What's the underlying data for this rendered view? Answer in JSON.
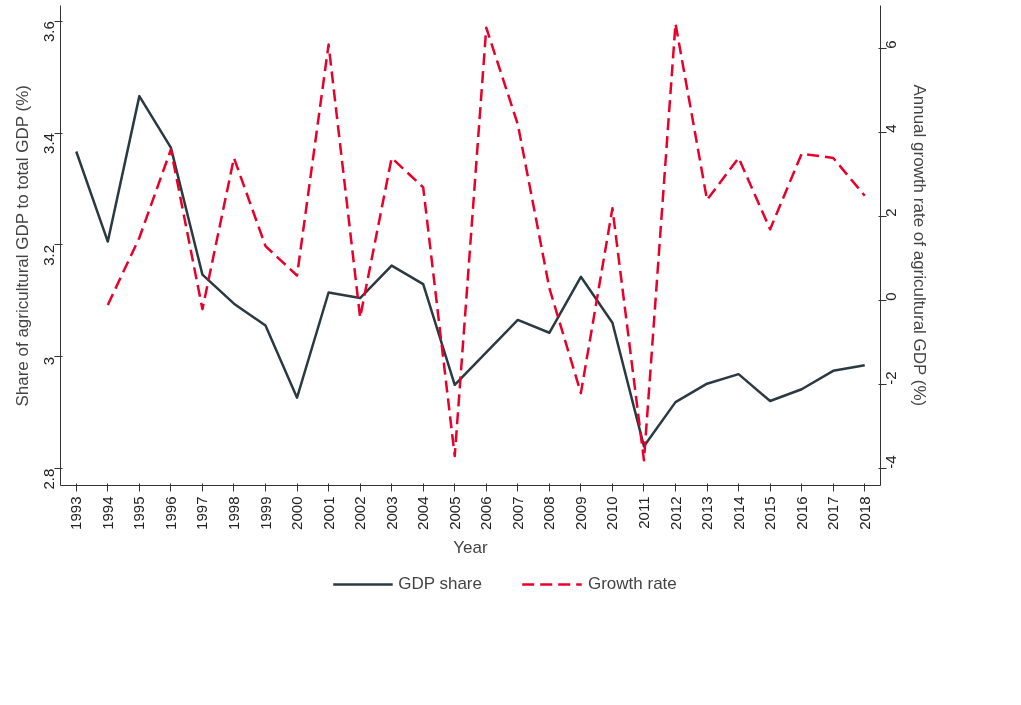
{
  "chart_data": {
    "type": "line",
    "xlabel": "Year",
    "ylabel": "Share of agricultural GDP to total GDP (%)",
    "y2label": "Annual growth rate of agricultural GDP (%)",
    "categories": [
      "1993",
      "1994",
      "1995",
      "1996",
      "1997",
      "1998",
      "1999",
      "2000",
      "2001",
      "2002",
      "2003",
      "2004",
      "2005",
      "2006",
      "2007",
      "2008",
      "2009",
      "2010",
      "2011",
      "2012",
      "2013",
      "2014",
      "2015",
      "2016",
      "2017",
      "2018"
    ],
    "series": [
      {
        "name": "GDP share",
        "color": "#2b3a42",
        "line_style": "solid",
        "values": [
          3.367,
          3.206,
          3.466,
          3.374,
          3.147,
          3.095,
          3.056,
          2.927,
          3.115,
          3.105,
          3.163,
          3.13,
          2.95,
          3.008,
          3.066,
          3.043,
          3.143,
          3.061,
          2.84,
          2.919,
          2.952,
          2.969,
          2.921,
          2.942,
          2.975,
          2.985
        ]
      },
      {
        "name": "Growth rate",
        "color": "#e8002a",
        "line_style": "dashed",
        "axis": "y2",
        "values": [
          null,
          -0.1,
          1.5,
          3.6,
          -0.2,
          3.4,
          1.3,
          0.6,
          6.1,
          -0.4,
          3.4,
          2.7,
          -3.7,
          6.5,
          4.2,
          0.3,
          -2.2,
          2.2,
          -3.8,
          6.6,
          2.4,
          3.4,
          1.7,
          3.5,
          3.4,
          2.5
        ]
      }
    ],
    "ylim": [
      2.77,
      3.628
    ],
    "yticks": [
      2.8,
      3,
      3.2,
      3.4,
      3.6
    ],
    "y2lim": [
      -4.4,
      7.03
    ],
    "y2ticks": [
      -4,
      -2,
      0,
      2,
      4,
      6
    ],
    "grid": false,
    "legend": "bottom"
  }
}
